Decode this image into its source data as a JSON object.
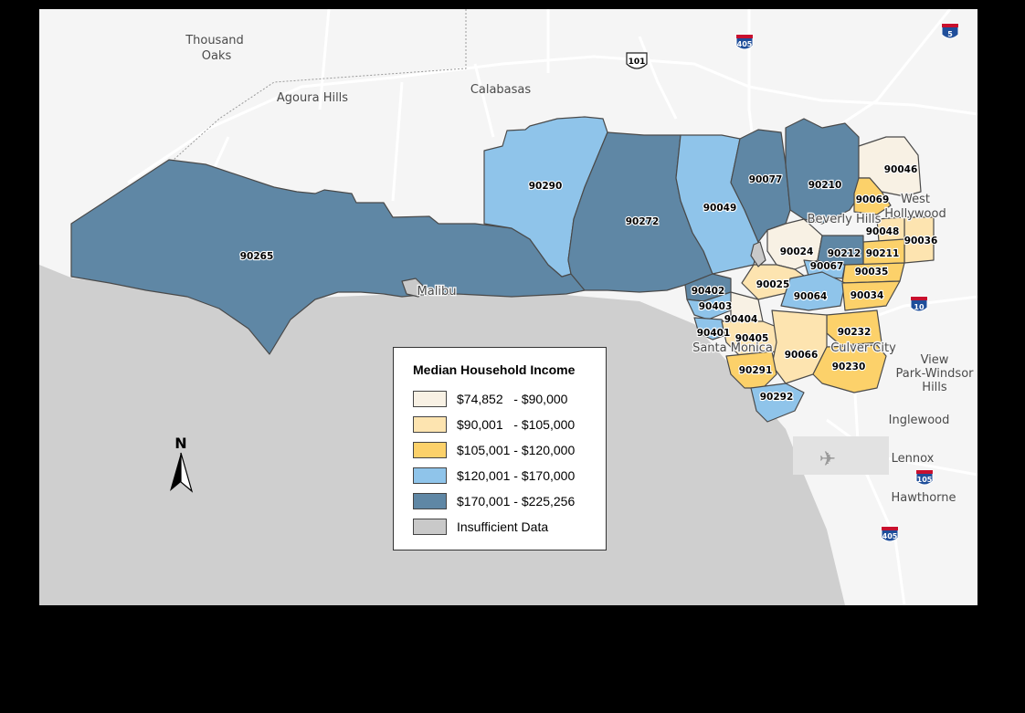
{
  "legend": {
    "title": "Median Household Income",
    "items": [
      {
        "label": "$74,852   - $90,000",
        "color": "#f8f1e4"
      },
      {
        "label": "$90,001   - $105,000",
        "color": "#fde4b0"
      },
      {
        "label": "$105,001 - $120,000",
        "color": "#fcd16a"
      },
      {
        "label": "$120,001 - $170,000",
        "color": "#8fc4ea"
      },
      {
        "label": "$170,001 - $225,256",
        "color": "#5f87a5"
      },
      {
        "label": "Insufficient Data",
        "color": "#c9c9c9"
      }
    ]
  },
  "north_label": "N",
  "places": {
    "thousand_oaks_1": "Thousand",
    "thousand_oaks_2": "Oaks",
    "agoura_hills": "Agoura Hills",
    "calabasas": "Calabasas",
    "malibu": "Malibu",
    "beverly_hills": "Beverly Hills",
    "west_hollywood_1": "West",
    "west_hollywood_2": "Hollywood",
    "santa_monica": "Santa Monica",
    "culver_city": "Culver City",
    "view_park_1": "View",
    "view_park_2": "Park-Windsor",
    "view_park_3": "Hills",
    "inglewood": "Inglewood",
    "lennox": "Lennox",
    "hawthorne": "Hawthorne"
  },
  "highways": {
    "i405_north": "405",
    "i5": "5",
    "us101": "101",
    "i10": "10",
    "i105": "105",
    "i405_south": "405"
  },
  "zip_codes": {
    "z90265": "90265",
    "z90290": "90290",
    "z90272": "90272",
    "z90049": "90049",
    "z90077": "90077",
    "z90210": "90210",
    "z90046": "90046",
    "z90069": "90069",
    "z90048": "90048",
    "z90036": "90036",
    "z90024": "90024",
    "z90212": "90212",
    "z90211": "90211",
    "z90067": "90067",
    "z90035": "90035",
    "z90025": "90025",
    "z90064": "90064",
    "z90034": "90034",
    "z90402": "90402",
    "z90403": "90403",
    "z90404": "90404",
    "z90401": "90401",
    "z90405": "90405",
    "z90232": "90232",
    "z90066": "90066",
    "z90291": "90291",
    "z90230": "90230",
    "z90292": "90292"
  },
  "colors": {
    "band1": "#f8f1e4",
    "band2": "#fde4b0",
    "band3": "#fcd16a",
    "band4": "#8fc4ea",
    "band5": "#5f87a5",
    "no_data": "#c9c9c9",
    "land": "#f5f5f5",
    "ocean": "#cfcfcf"
  }
}
